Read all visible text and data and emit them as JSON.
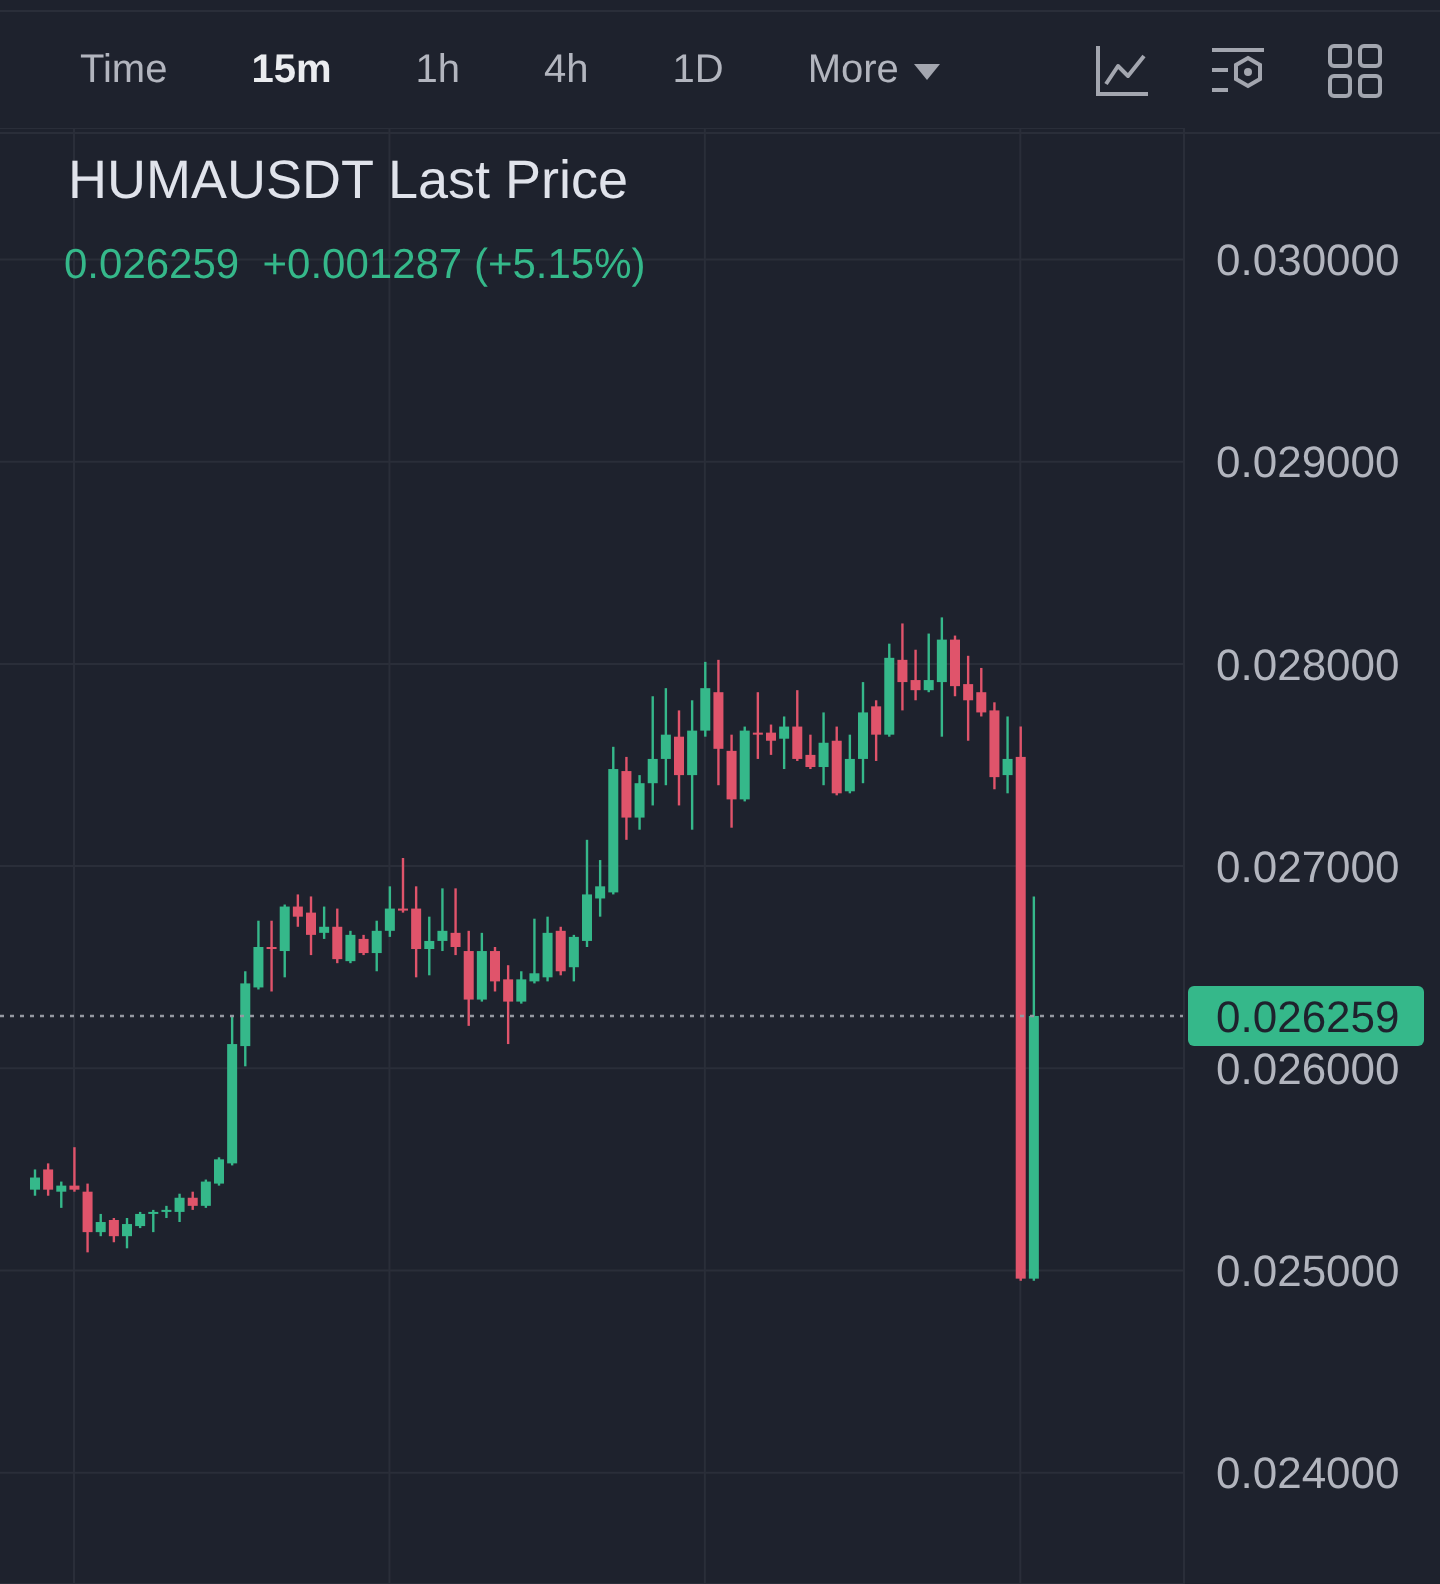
{
  "chart_data": {
    "type": "candlestick",
    "title": "HUMAUSDT Last Price",
    "subtitle": "0.026259  +0.001287 (+5.15%)",
    "annotations": [
      "Time",
      "15m",
      "1h",
      "4h",
      "1D",
      "More"
    ],
    "categories": [
      null,
      null,
      null,
      null,
      null,
      null,
      null,
      null,
      null,
      null,
      null,
      null,
      null,
      null,
      null,
      null,
      null,
      null,
      null,
      null,
      null,
      null,
      null,
      null,
      null,
      null,
      null,
      null,
      null,
      null,
      null,
      null,
      null,
      null,
      null,
      null,
      null,
      null,
      null,
      null,
      null,
      null,
      null,
      null,
      null,
      null,
      null,
      null,
      null,
      null,
      null,
      null,
      null,
      null,
      null,
      null,
      null,
      null,
      null,
      null,
      null,
      null,
      null,
      null,
      null,
      null,
      null,
      null,
      null,
      null,
      null,
      null,
      null,
      null,
      null,
      null,
      null
    ],
    "ohlc": [
      [
        0.0254,
        0.0255,
        0.02537,
        0.02546
      ],
      [
        0.0255,
        0.02553,
        0.02537,
        0.0254
      ],
      [
        0.02539,
        0.02544,
        0.02531,
        0.02542
      ],
      [
        0.02542,
        0.02561,
        0.02539,
        0.0254
      ],
      [
        0.02539,
        0.02543,
        0.02509,
        0.02519
      ],
      [
        0.02519,
        0.02528,
        0.02517,
        0.02524
      ],
      [
        0.02525,
        0.02526,
        0.02514,
        0.02517
      ],
      [
        0.02517,
        0.02526,
        0.02511,
        0.02523
      ],
      [
        0.02522,
        0.02529,
        0.02521,
        0.02528
      ],
      [
        0.02528,
        0.0253,
        0.02519,
        0.02529
      ],
      [
        0.02529,
        0.02532,
        0.02526,
        0.0253
      ],
      [
        0.02529,
        0.02538,
        0.02524,
        0.02536
      ],
      [
        0.02536,
        0.02539,
        0.0253,
        0.02532
      ],
      [
        0.02532,
        0.02545,
        0.02531,
        0.02544
      ],
      [
        0.02543,
        0.02556,
        0.02542,
        0.02555
      ],
      [
        0.02553,
        0.02626,
        0.02552,
        0.02612
      ],
      [
        0.02611,
        0.02648,
        0.02601,
        0.02642
      ],
      [
        0.0264,
        0.02673,
        0.02639,
        0.0266
      ],
      [
        0.0266,
        0.02673,
        0.02638,
        0.02659
      ],
      [
        0.02658,
        0.02681,
        0.02645,
        0.0268
      ],
      [
        0.0268,
        0.02686,
        0.0267,
        0.02675
      ],
      [
        0.02677,
        0.02685,
        0.02656,
        0.02666
      ],
      [
        0.02667,
        0.0268,
        0.02664,
        0.0267
      ],
      [
        0.0267,
        0.02679,
        0.02652,
        0.02654
      ],
      [
        0.02653,
        0.02668,
        0.02652,
        0.02666
      ],
      [
        0.02664,
        0.02666,
        0.02656,
        0.02657
      ],
      [
        0.02657,
        0.02673,
        0.02648,
        0.02668
      ],
      [
        0.02668,
        0.0269,
        0.02665,
        0.02679
      ],
      [
        0.02679,
        0.02704,
        0.02677,
        0.02678
      ],
      [
        0.02679,
        0.0269,
        0.02645,
        0.02659
      ],
      [
        0.02659,
        0.02675,
        0.02646,
        0.02663
      ],
      [
        0.02663,
        0.02689,
        0.02658,
        0.02668
      ],
      [
        0.02667,
        0.02689,
        0.02656,
        0.0266
      ],
      [
        0.02658,
        0.02668,
        0.02621,
        0.02634
      ],
      [
        0.02634,
        0.02667,
        0.02633,
        0.02658
      ],
      [
        0.02658,
        0.0266,
        0.02638,
        0.02643
      ],
      [
        0.02644,
        0.02651,
        0.02612,
        0.02633
      ],
      [
        0.02633,
        0.02648,
        0.02632,
        0.02644
      ],
      [
        0.02643,
        0.02674,
        0.02642,
        0.02647
      ],
      [
        0.02645,
        0.02675,
        0.02643,
        0.02667
      ],
      [
        0.02668,
        0.0267,
        0.02646,
        0.02648
      ],
      [
        0.0265,
        0.02666,
        0.02643,
        0.02665
      ],
      [
        0.02663,
        0.02713,
        0.0266,
        0.02686
      ],
      [
        0.02684,
        0.02703,
        0.02675,
        0.0269
      ],
      [
        0.02687,
        0.02759,
        0.02686,
        0.02748
      ],
      [
        0.02747,
        0.02754,
        0.02713,
        0.02724
      ],
      [
        0.02724,
        0.02745,
        0.02718,
        0.02741
      ],
      [
        0.02741,
        0.02784,
        0.0273,
        0.02753
      ],
      [
        0.02753,
        0.02788,
        0.0274,
        0.02765
      ],
      [
        0.02764,
        0.02777,
        0.0273,
        0.02745
      ],
      [
        0.02745,
        0.02782,
        0.02718,
        0.02767
      ],
      [
        0.02767,
        0.02801,
        0.02764,
        0.02788
      ],
      [
        0.02786,
        0.02802,
        0.0274,
        0.02758
      ],
      [
        0.02757,
        0.02765,
        0.02719,
        0.02733
      ],
      [
        0.02733,
        0.02769,
        0.02732,
        0.02767
      ],
      [
        0.02766,
        0.02786,
        0.02753,
        0.02765
      ],
      [
        0.02766,
        0.0277,
        0.02755,
        0.02762
      ],
      [
        0.02763,
        0.02774,
        0.02748,
        0.02769
      ],
      [
        0.02769,
        0.02787,
        0.02752,
        0.02753
      ],
      [
        0.02755,
        0.02765,
        0.02748,
        0.02749
      ],
      [
        0.02749,
        0.02776,
        0.0274,
        0.02761
      ],
      [
        0.02762,
        0.02769,
        0.02735,
        0.02736
      ],
      [
        0.02737,
        0.02765,
        0.02736,
        0.02753
      ],
      [
        0.02753,
        0.02791,
        0.02741,
        0.02776
      ],
      [
        0.02779,
        0.02782,
        0.02752,
        0.02765
      ],
      [
        0.02765,
        0.0281,
        0.02764,
        0.02803
      ],
      [
        0.02802,
        0.0282,
        0.02777,
        0.02791
      ],
      [
        0.02792,
        0.02807,
        0.02782,
        0.02787
      ],
      [
        0.02787,
        0.02815,
        0.02786,
        0.02792
      ],
      [
        0.02791,
        0.02823,
        0.02764,
        0.02812
      ],
      [
        0.02812,
        0.02814,
        0.02784,
        0.02789
      ],
      [
        0.0279,
        0.02804,
        0.02762,
        0.02782
      ],
      [
        0.02786,
        0.02798,
        0.02774,
        0.02776
      ],
      [
        0.02777,
        0.02781,
        0.02738,
        0.02744
      ],
      [
        0.02745,
        0.02774,
        0.02736,
        0.02753
      ],
      [
        0.02754,
        0.02769,
        0.02495,
        0.02496
      ],
      [
        0.02496,
        0.02685,
        0.02495,
        0.026259
      ]
    ],
    "colors": [
      "#35b88a",
      "#e0546b",
      "#35b88a",
      "#e0546b",
      "#e0546b",
      "#35b88a",
      "#e0546b",
      "#35b88a",
      "#35b88a",
      "#35b88a",
      "#35b88a",
      "#35b88a",
      "#e0546b",
      "#35b88a",
      "#35b88a",
      "#35b88a",
      "#35b88a",
      "#35b88a",
      "#e0546b",
      "#35b88a",
      "#e0546b",
      "#e0546b",
      "#35b88a",
      "#e0546b",
      "#35b88a",
      "#e0546b",
      "#35b88a",
      "#35b88a",
      "#e0546b",
      "#e0546b",
      "#35b88a",
      "#35b88a",
      "#e0546b",
      "#e0546b",
      "#35b88a",
      "#e0546b",
      "#e0546b",
      "#35b88a",
      "#35b88a",
      "#35b88a",
      "#e0546b",
      "#35b88a",
      "#35b88a",
      "#35b88a",
      "#35b88a",
      "#e0546b",
      "#35b88a",
      "#35b88a",
      "#35b88a",
      "#e0546b",
      "#35b88a",
      "#35b88a",
      "#e0546b",
      "#e0546b",
      "#35b88a",
      "#e0546b",
      "#e0546b",
      "#35b88a",
      "#e0546b",
      "#e0546b",
      "#35b88a",
      "#e0546b",
      "#35b88a",
      "#35b88a",
      "#e0546b",
      "#35b88a",
      "#e0546b",
      "#e0546b",
      "#35b88a",
      "#35b88a",
      "#e0546b",
      "#e0546b",
      "#e0546b",
      "#e0546b",
      "#35b88a",
      "#e0546b",
      "#35b88a"
    ],
    "ylim": [
      0.02345,
      0.03065
    ],
    "yticks": [
      {
        "value": 0.024,
        "label": "0.024000"
      },
      {
        "value": 0.025,
        "label": "0.025000"
      },
      {
        "value": 0.026,
        "label": "0.026000"
      },
      {
        "value": 0.027,
        "label": "0.027000"
      },
      {
        "value": 0.028,
        "label": "0.028000"
      },
      {
        "value": 0.029,
        "label": "0.029000"
      },
      {
        "value": 0.03,
        "label": "0.030000"
      }
    ],
    "grid": true,
    "ref_lines": [
      {
        "axis": "y",
        "value": 0.026259,
        "label": "0.026259",
        "color": "#9598a1",
        "line_style": "dotted"
      }
    ]
  }
}
